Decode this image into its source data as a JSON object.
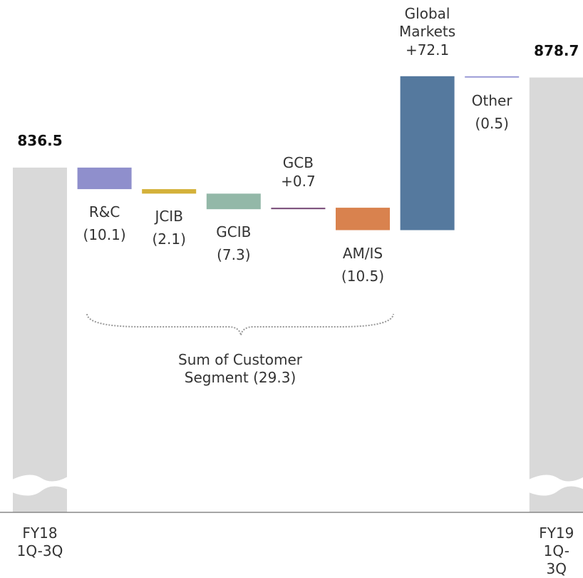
{
  "chart_data": {
    "type": "waterfall",
    "categories": [
      "FY18\n1Q-3Q",
      "R&C",
      "JCIB",
      "GCIB",
      "GCB",
      "AM/IS",
      "Global\nMarkets",
      "Other",
      "FY19\n1Q-3Q"
    ],
    "measure": [
      "absolute",
      "relative",
      "relative",
      "relative",
      "relative",
      "relative",
      "relative",
      "relative",
      "absolute"
    ],
    "values": [
      836.5,
      -10.1,
      -2.1,
      -7.3,
      0.7,
      -10.5,
      72.1,
      -0.5,
      878.7
    ],
    "value_labels": [
      "836.5",
      "(10.1)",
      "(2.1)",
      "(7.3)",
      "+0.7",
      "(10.5)",
      "+72.1",
      "(0.5)",
      "878.7"
    ],
    "colors": [
      "#d9d9d9",
      "#8f8fcc",
      "#d4b13a",
      "#93b8a8",
      "#7b4f7b",
      "#d9824e",
      "#55799e",
      "#9a9ad6",
      "#d9d9d9"
    ],
    "ylim": [
      675,
      915
    ],
    "axis_break": true,
    "annotation": "Sum of Customer\nSegment (29.3)"
  }
}
